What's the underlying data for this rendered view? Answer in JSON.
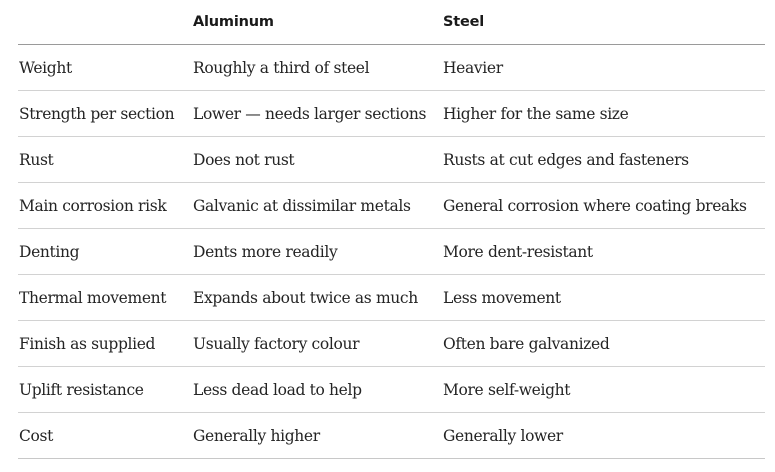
{
  "table": {
    "headers": [
      "",
      "Aluminum",
      "Steel"
    ],
    "rows": [
      [
        "Weight",
        "Roughly a third of steel",
        "Heavier"
      ],
      [
        "Strength per section",
        "Lower — needs larger sections",
        "Higher for the same size"
      ],
      [
        "Rust",
        "Does not rust",
        "Rusts at cut edges and fasteners"
      ],
      [
        "Main corrosion risk",
        "Galvanic at dissimilar metals",
        "General corrosion where coating breaks"
      ],
      [
        "Denting",
        "Dents more readily",
        "More dent-resistant"
      ],
      [
        "Thermal movement",
        "Expands about twice as much",
        "Less movement"
      ],
      [
        "Finish as supplied",
        "Usually factory colour",
        "Often bare galvanized"
      ],
      [
        "Uplift resistance",
        "Less dead load to help",
        "More self-weight"
      ],
      [
        "Cost",
        "Generally higher",
        "Generally lower"
      ]
    ]
  },
  "colors": {
    "text": "#242424",
    "header_rule": "#9a9a9a",
    "row_rule": "#d2d2d2"
  }
}
